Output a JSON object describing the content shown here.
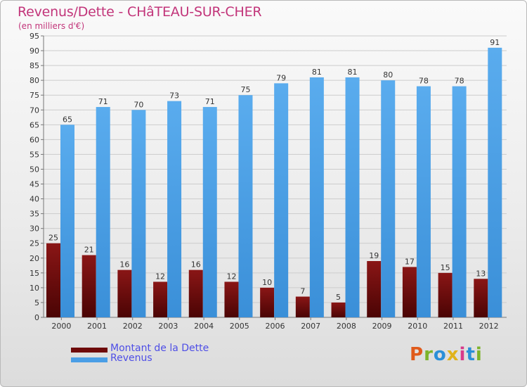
{
  "title": "Revenus/Dette - CHâTEAU-SUR-CHER",
  "subtitle": "(en milliers d'€)",
  "colors": {
    "dette": "#6e0a0a",
    "revenus": "#4a9ee6",
    "title": "#c2357a",
    "legend_text": "#4e4ee6"
  },
  "legend": [
    {
      "label": "Montant de la Dette",
      "color": "#6e0a0a"
    },
    {
      "label": "Revenus",
      "color": "#4a9ee6"
    }
  ],
  "brand": {
    "letters": [
      "P",
      "r",
      "o",
      "x",
      "i",
      "t",
      "i"
    ],
    "colors": [
      "#e05a1a",
      "#7db32a",
      "#2a8fd8",
      "#e0b31a",
      "#d83a8a",
      "#2a8fd8",
      "#7db32a"
    ]
  },
  "chart_data": {
    "type": "bar",
    "categories": [
      "2000",
      "2001",
      "2002",
      "2003",
      "2004",
      "2005",
      "2006",
      "2007",
      "2008",
      "2009",
      "2010",
      "2011",
      "2012"
    ],
    "series": [
      {
        "name": "Montant de la Dette",
        "values": [
          25,
          21,
          16,
          12,
          16,
          12,
          10,
          7,
          5,
          19,
          17,
          15,
          13
        ]
      },
      {
        "name": "Revenus",
        "values": [
          65,
          71,
          70,
          73,
          71,
          75,
          79,
          81,
          81,
          80,
          78,
          78,
          91
        ]
      }
    ],
    "title": "Revenus/Dette - CHâTEAU-SUR-CHER",
    "subtitle": "(en milliers d'€)",
    "ylim": [
      0,
      95
    ],
    "ytick_step": 5,
    "grid": true,
    "data_labels": true,
    "legend_position": "bottom-left"
  }
}
